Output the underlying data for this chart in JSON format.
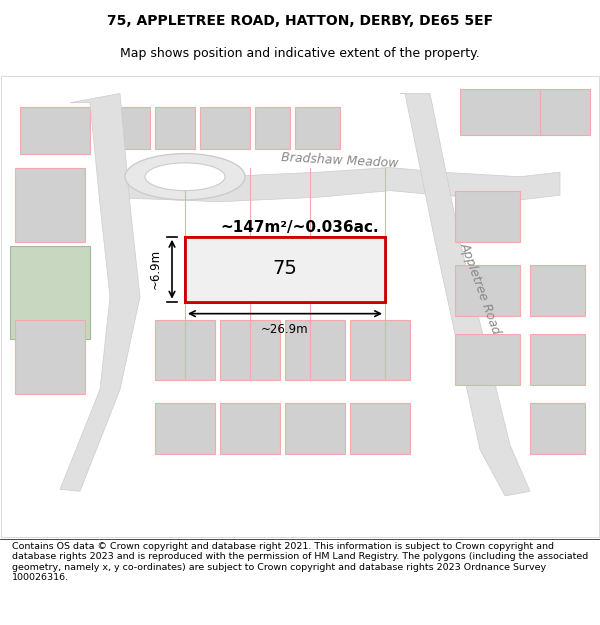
{
  "title_line1": "75, APPLETREE ROAD, HATTON, DERBY, DE65 5EF",
  "title_line2": "Map shows position and indicative extent of the property.",
  "footer_text": "Contains OS data © Crown copyright and database right 2021. This information is subject to Crown copyright and database rights 2023 and is reproduced with the permission of HM Land Registry. The polygons (including the associated geometry, namely x, y co-ordinates) are subject to Crown copyright and database rights 2023 Ordnance Survey 100026316.",
  "area_label": "~147m²/~0.036ac.",
  "width_label": "~26.9m",
  "height_label": "~6.9m",
  "property_number": "75",
  "road_label_1": "Bradshaw Meadow",
  "road_label_2": "Appletree Road",
  "map_bg": "#ffffff",
  "plot_fill": "#e8e8e8",
  "plot_border": "#cc0000",
  "road_fill": "#d8d8d8",
  "building_fill": "#d0d0d0",
  "line_color": "#f0a0a0",
  "dim_line_color": "#000000",
  "title_fontsize": 10,
  "footer_fontsize": 7.5
}
